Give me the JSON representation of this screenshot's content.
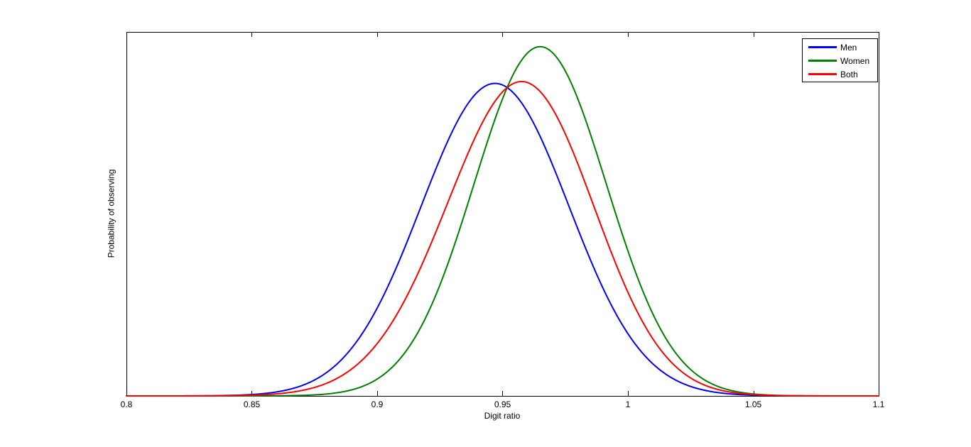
{
  "figure": {
    "background": "#ffffff",
    "axes_color": "#000000",
    "text_color": "#000000"
  },
  "chart_data": {
    "type": "line",
    "title": "",
    "xlabel": "Digit ratio",
    "ylabel": "Probability of observing",
    "xlim": [
      0.8,
      1.1
    ],
    "ylim": [
      0,
      15.75
    ],
    "xtick_values": [
      0.8,
      0.85,
      0.9,
      0.95,
      1.0,
      1.05,
      1.1
    ],
    "xtick_labels": [
      "0.8",
      "0.85",
      "0.9",
      "0.95",
      "1",
      "1.05",
      "1.1"
    ],
    "ytick_values": [],
    "ytick_labels": [],
    "grid": false,
    "legend_position": "top-right",
    "line_width": 2,
    "series": [
      {
        "name": "Men",
        "color": "#0000ff",
        "curve": "normal_pdf",
        "mean": 0.947,
        "sd": 0.0295,
        "peak": {
          "x": 0.947,
          "y": 13.52
        }
      },
      {
        "name": "Women",
        "color": "#008000",
        "curve": "normal_pdf",
        "mean": 0.965,
        "sd": 0.0264,
        "peak": {
          "x": 0.965,
          "y": 15.11
        }
      },
      {
        "name": "Both",
        "color": "#ff0000",
        "curve": "normal_mixture",
        "components": [
          {
            "mean": 0.947,
            "sd": 0.0295,
            "weight": 0.5
          },
          {
            "mean": 0.965,
            "sd": 0.0264,
            "weight": 0.5
          }
        ],
        "peak": {
          "x": 0.956,
          "y": 13.58
        }
      }
    ]
  },
  "legend": {
    "entries": [
      {
        "label": "Men",
        "color": "#0000ff"
      },
      {
        "label": "Women",
        "color": "#008000"
      },
      {
        "label": "Both",
        "color": "#ff0000"
      }
    ]
  }
}
